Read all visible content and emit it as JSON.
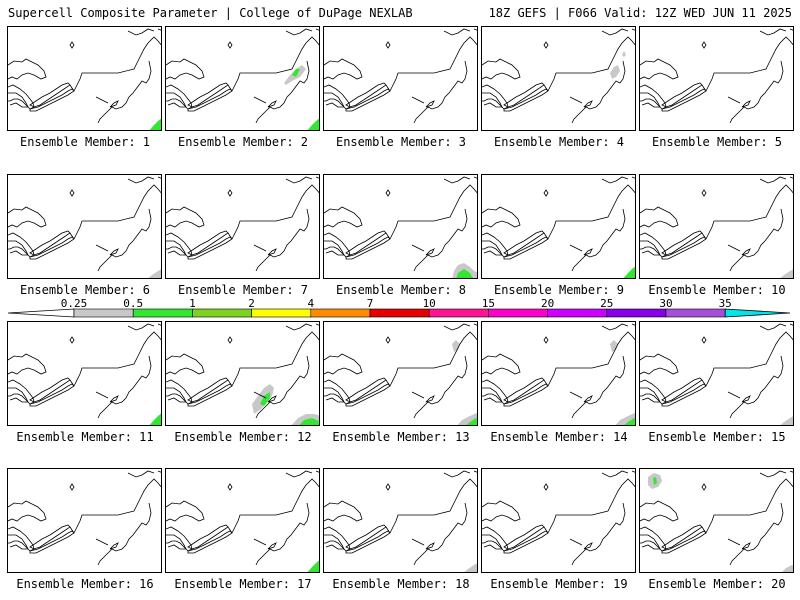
{
  "header": {
    "left": "Supercell Composite Parameter | College of DuPage NEXLAB",
    "right": "18Z GEFS | F066 Valid: 12Z WED JUN 11 2025"
  },
  "colorbar": {
    "labels": [
      "0.25",
      "0.5",
      "1",
      "2",
      "4",
      "7",
      "10",
      "15",
      "20",
      "25",
      "30",
      "35"
    ],
    "colors": [
      "#c8c8c8",
      "#32e632",
      "#7ed321",
      "#ffff00",
      "#ff8c00",
      "#e60000",
      "#ff1493",
      "#ff00cc",
      "#cc00ff",
      "#8a00e6",
      "#a64dd9",
      "#00e5e5"
    ]
  },
  "members": [
    {
      "label": "Ensemble Member: 1",
      "fill": "green-se"
    },
    {
      "label": "Ensemble Member: 2",
      "fill": "green-se-ny"
    },
    {
      "label": "Ensemble Member: 3",
      "fill": "none"
    },
    {
      "label": "Ensemble Member: 4",
      "fill": "gray-ne"
    },
    {
      "label": "Ensemble Member: 5",
      "fill": "none"
    },
    {
      "label": "Ensemble Member: 6",
      "fill": "gray-se"
    },
    {
      "label": "Ensemble Member: 7",
      "fill": "none"
    },
    {
      "label": "Ensemble Member: 8",
      "fill": "green-mid"
    },
    {
      "label": "Ensemble Member: 9",
      "fill": "green-se"
    },
    {
      "label": "Ensemble Member: 10",
      "fill": "gray-se"
    },
    {
      "label": "Ensemble Member: 11",
      "fill": "green-se"
    },
    {
      "label": "Ensemble Member: 12",
      "fill": "green-pa"
    },
    {
      "label": "Ensemble Member: 13",
      "fill": "green-se-ne"
    },
    {
      "label": "Ensemble Member: 14",
      "fill": "green-se-ne"
    },
    {
      "label": "Ensemble Member: 15",
      "fill": "gray-se"
    },
    {
      "label": "Ensemble Member: 16",
      "fill": "none"
    },
    {
      "label": "Ensemble Member: 17",
      "fill": "green-se"
    },
    {
      "label": "Ensemble Member: 18",
      "fill": "gray-se"
    },
    {
      "label": "Ensemble Member: 19",
      "fill": "none"
    },
    {
      "label": "Ensemble Member: 20",
      "fill": "green-ont"
    }
  ]
}
